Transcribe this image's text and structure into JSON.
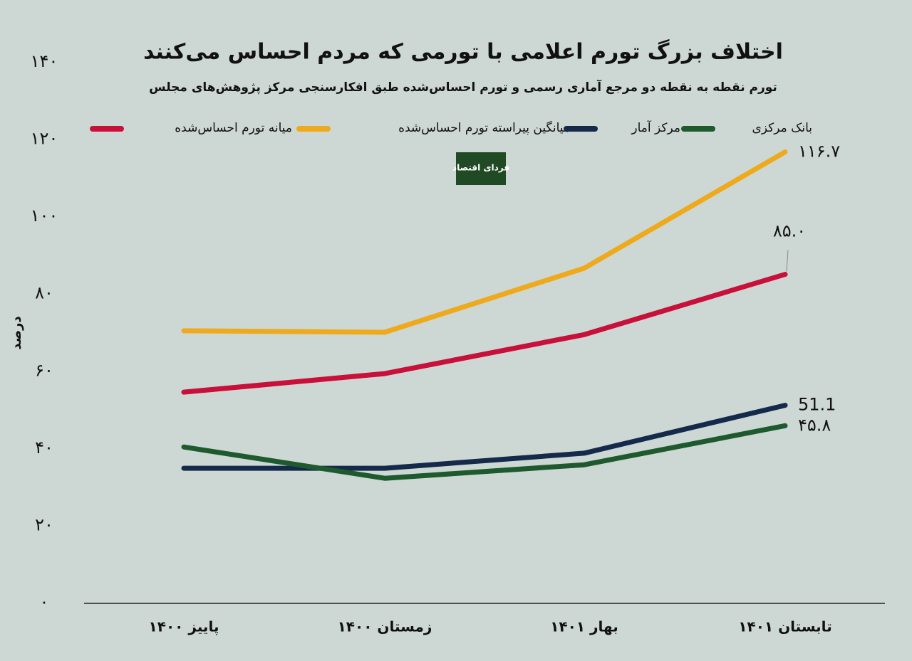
{
  "chart_data": {
    "type": "line",
    "title": "اختلاف بزرگ تورم اعلامی با تورمی که مردم احساس می‌کنند",
    "subtitle": "تورم نقطه به نقطه دو مرجع آماری رسمی و تورم احساس‌شده طبق افکارسنجی مرکز پژوهش‌های مجلس",
    "logo": "فردای اقتصاد",
    "y_label": "درصد",
    "categories": [
      "پاییز ۱۴۰۰",
      "زمستان ۱۴۰۰",
      "بهار ۱۴۰۱",
      "تابستان ۱۴۰۱"
    ],
    "series": [
      {
        "name": "میانه تورم احساس‌شده",
        "color": "#c8103a",
        "values": [
          54.5,
          59.3,
          69.4,
          85.0
        ],
        "value_labels": [
          null,
          null,
          null,
          "۸۵.۰"
        ]
      },
      {
        "name": "میانگین پیراسته تورم احساس‌شده",
        "color": "#eeaa1c",
        "values": [
          70.4,
          70.0,
          86.6,
          116.7
        ],
        "value_labels": [
          null,
          null,
          null,
          "۱۱۶.۷"
        ]
      },
      {
        "name": "مرکز آمار",
        "color": "#15294b",
        "values": [
          34.8,
          34.8,
          38.7,
          51.1
        ],
        "value_labels": [
          null,
          null,
          null,
          "51.1"
        ]
      },
      {
        "name": "بانک مرکزی",
        "color": "#1e5a2e",
        "values": [
          40.3,
          32.2,
          35.7,
          45.8
        ],
        "value_labels": [
          null,
          null,
          null,
          "۴۵.۸"
        ]
      }
    ],
    "ylim": [
      0,
      140
    ],
    "yticks": [
      {
        "value": 0,
        "label": "۰"
      },
      {
        "value": 20,
        "label": "۲۰"
      },
      {
        "value": 40,
        "label": "۴۰"
      },
      {
        "value": 60,
        "label": "۶۰"
      },
      {
        "value": 80,
        "label": "۸۰"
      },
      {
        "value": 100,
        "label": "۱۰۰"
      },
      {
        "value": 120,
        "label": "۱۲۰"
      },
      {
        "value": 140,
        "label": "۱۴۰"
      }
    ],
    "grid": false
  }
}
